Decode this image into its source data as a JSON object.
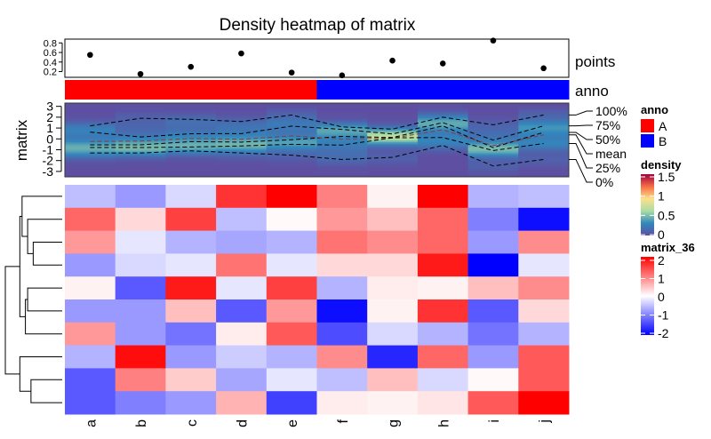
{
  "chart_data": {
    "type": "heatmap",
    "title": "Density heatmap of matrix",
    "columns": [
      "a",
      "b",
      "c",
      "d",
      "e",
      "f",
      "g",
      "h",
      "i",
      "j"
    ],
    "matrix": [
      [
        -0.5,
        -0.8,
        -0.3,
        1.6,
        2.2,
        1.0,
        0.1,
        2.0,
        -0.6,
        -0.5
      ],
      [
        1.2,
        0.3,
        1.5,
        -0.5,
        0.05,
        0.8,
        0.5,
        1.2,
        -1.0,
        -1.9
      ],
      [
        0.8,
        -0.2,
        -0.6,
        -0.7,
        -0.6,
        1.1,
        0.9,
        1.2,
        -0.8,
        0.9
      ],
      [
        -0.8,
        -0.3,
        -0.2,
        1.1,
        -0.2,
        0.3,
        0.3,
        1.8,
        -2.5,
        -0.2
      ],
      [
        0.1,
        -1.3,
        1.8,
        -0.2,
        1.5,
        -0.6,
        0.15,
        0.1,
        0.5,
        0.9
      ],
      [
        -0.8,
        -0.8,
        0.5,
        -1.3,
        0.8,
        -1.9,
        0.1,
        1.6,
        -1.3,
        0.3
      ],
      [
        0.8,
        -0.8,
        -1.1,
        0.15,
        1.3,
        -1.4,
        -0.3,
        -0.6,
        -1.1,
        -0.6
      ],
      [
        -0.6,
        1.9,
        -0.8,
        -0.4,
        -0.6,
        0.9,
        -1.7,
        1.2,
        -0.8,
        1.3
      ],
      [
        -1.3,
        1.0,
        0.4,
        -0.7,
        -0.2,
        -0.5,
        0.5,
        -0.3,
        0.05,
        1.3
      ],
      [
        -1.3,
        -1.0,
        -0.8,
        0.6,
        -1.5,
        0.15,
        0.1,
        0.2,
        1.3,
        2.2
      ]
    ],
    "row_dendrogram": {
      "merges": [
        [
          2,
          3,
          0.26
        ],
        [
          1,
          "m0",
          0.31
        ],
        [
          0,
          "m1",
          0.36
        ],
        [
          4,
          5,
          0.31
        ],
        [
          "m3",
          6,
          0.33
        ],
        [
          "m2",
          "m4",
          0.38
        ],
        [
          8,
          9,
          0.28
        ],
        [
          7,
          "m6",
          0.38
        ],
        [
          "m5",
          "m7",
          0.51
        ]
      ]
    },
    "points": {
      "label": "points",
      "values": [
        0.55,
        0.15,
        0.3,
        0.58,
        0.18,
        0.12,
        0.43,
        0.37,
        0.85,
        0.27
      ],
      "ticks": [
        "0.2",
        "0.4",
        "0.6",
        "0.8"
      ],
      "ylim": [
        0.08,
        0.88
      ]
    },
    "anno": {
      "label": "anno",
      "values": [
        "A",
        "A",
        "A",
        "A",
        "A",
        "B",
        "B",
        "B",
        "B",
        "B"
      ]
    },
    "density": {
      "ylabel": "matrix",
      "ylim": [
        -3.5,
        3.3
      ],
      "ticks": [
        "3",
        "2",
        "1",
        "0",
        "-1",
        "-2",
        "-3"
      ],
      "quantile_labels": [
        "100%",
        "75%",
        "50%",
        "mean",
        "25%",
        "0%"
      ]
    },
    "legends": {
      "anno": {
        "title": "anno",
        "items": [
          {
            "label": "A",
            "color": "#FF0000"
          },
          {
            "label": "B",
            "color": "#0000FF"
          }
        ]
      },
      "density": {
        "title": "density",
        "ticks": [
          "1.5",
          "1",
          "0.5",
          "0"
        ],
        "colors": [
          "#9E0142",
          "#F46D43",
          "#FEE08B",
          "#ABDDA4",
          "#3288BD",
          "#5E4FA2"
        ]
      },
      "matrix_36": {
        "title": "matrix_36",
        "ticks": [
          "2",
          "1",
          "0",
          "-1",
          "-2"
        ],
        "colors": [
          "#FF0000",
          "#FFFFFF",
          "#0000FF"
        ]
      }
    }
  }
}
